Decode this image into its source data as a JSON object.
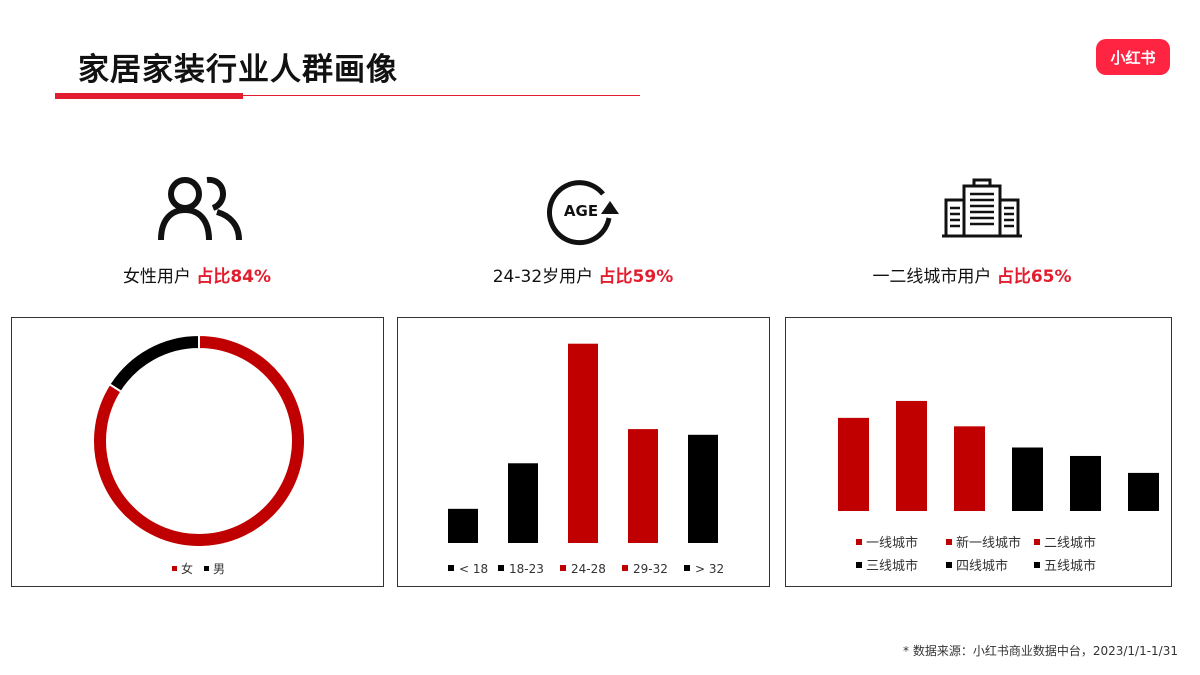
{
  "header": {
    "title": "家居家装行业人群画像",
    "logo_text": "小红书"
  },
  "sections": [
    {
      "icon": "users-icon",
      "caption_main": "女性用户",
      "caption_highlight": "占比84%"
    },
    {
      "icon": "age-icon",
      "icon_text": "AGE",
      "caption_main": "24-32岁用户",
      "caption_highlight": "占比59%"
    },
    {
      "icon": "city-buildings-icon",
      "caption_main": "一二线城市用户",
      "caption_highlight": "占比65%"
    }
  ],
  "colors": {
    "red": "#c00000",
    "black": "#000000",
    "accent": "#e11d2e"
  },
  "chart_data": [
    {
      "type": "pie",
      "donut": true,
      "categories": [
        "女",
        "男"
      ],
      "values": [
        84,
        16
      ],
      "colors": [
        "#c00000",
        "#000000"
      ],
      "legend": "bottom"
    },
    {
      "type": "bar",
      "categories": [
        "< 18",
        "18-23",
        "24-28",
        "29-32",
        "> 32"
      ],
      "values": [
        6,
        14,
        35,
        20,
        19
      ],
      "colors": [
        "#000000",
        "#000000",
        "#c00000",
        "#c00000",
        "#000000"
      ],
      "ylim": [
        0,
        36
      ],
      "legend": "bottom"
    },
    {
      "type": "bar",
      "categories": [
        "一线城市",
        "新一线城市",
        "二线城市",
        "三线城市",
        "四线城市",
        "五线城市"
      ],
      "values": [
        22,
        26,
        20,
        15,
        13,
        9
      ],
      "colors": [
        "#c00000",
        "#c00000",
        "#c00000",
        "#000000",
        "#000000",
        "#000000"
      ],
      "ylim": [
        0,
        30
      ],
      "legend": "bottom"
    }
  ],
  "footer": {
    "source": "* 数据来源：小红书商业数据中台，2023/1/1-1/31"
  }
}
